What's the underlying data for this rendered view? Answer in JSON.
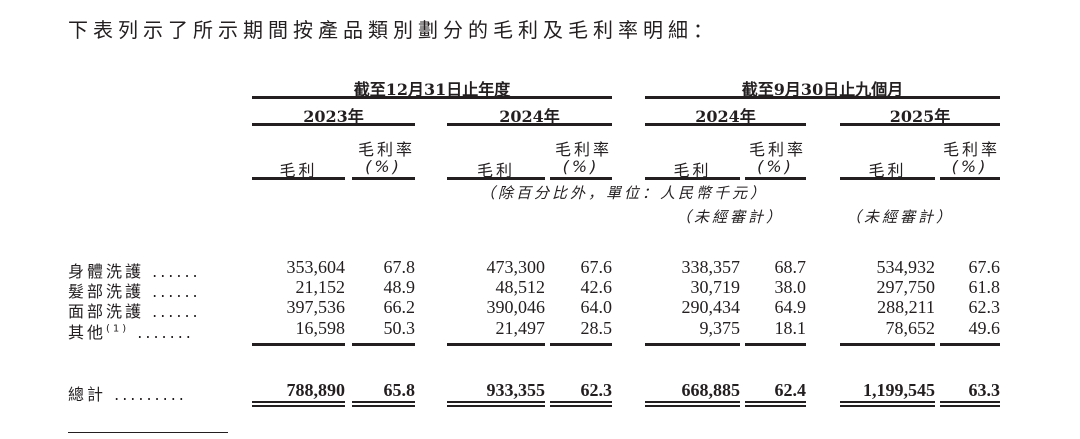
{
  "title": "下表列示了所示期間按產品類別劃分的毛利及毛利率明細：",
  "period_headers": [
    "截至12月31日止年度",
    "截至9月30日止九個月"
  ],
  "years": [
    "2023年",
    "2024年",
    "2024年",
    "2025年"
  ],
  "col_gross_profit": "毛利",
  "col_margin_top": "毛利率",
  "col_margin_unit": "(%)",
  "unit_note": "（除百分比外，單位：人民幣千元）",
  "unaudited": [
    "（未經審計）",
    "（未經審計）"
  ],
  "rows": [
    {
      "label": "身體洗護",
      "dots": "......",
      "values": [
        "353,604",
        "67.8",
        "473,300",
        "67.6",
        "338,357",
        "68.7",
        "534,932",
        "67.6"
      ]
    },
    {
      "label": "髮部洗護",
      "dots": "......",
      "values": [
        "21,152",
        "48.9",
        "48,512",
        "42.6",
        "30,719",
        "38.0",
        "297,750",
        "61.8"
      ]
    },
    {
      "label": "面部洗護",
      "dots": "......",
      "values": [
        "397,536",
        "66.2",
        "390,046",
        "64.0",
        "290,434",
        "64.9",
        "288,211",
        "62.3"
      ]
    },
    {
      "label": "其他",
      "footnote": "(1)",
      "dots": ".......",
      "values": [
        "16,598",
        "50.3",
        "21,497",
        "28.5",
        "9,375",
        "18.1",
        "78,652",
        "49.6"
      ]
    }
  ],
  "total": {
    "label": "總計",
    "dots": ".........",
    "values": [
      "788,890",
      "65.8",
      "933,355",
      "62.3",
      "668,885",
      "62.4",
      "1,199,545",
      "63.3"
    ]
  }
}
